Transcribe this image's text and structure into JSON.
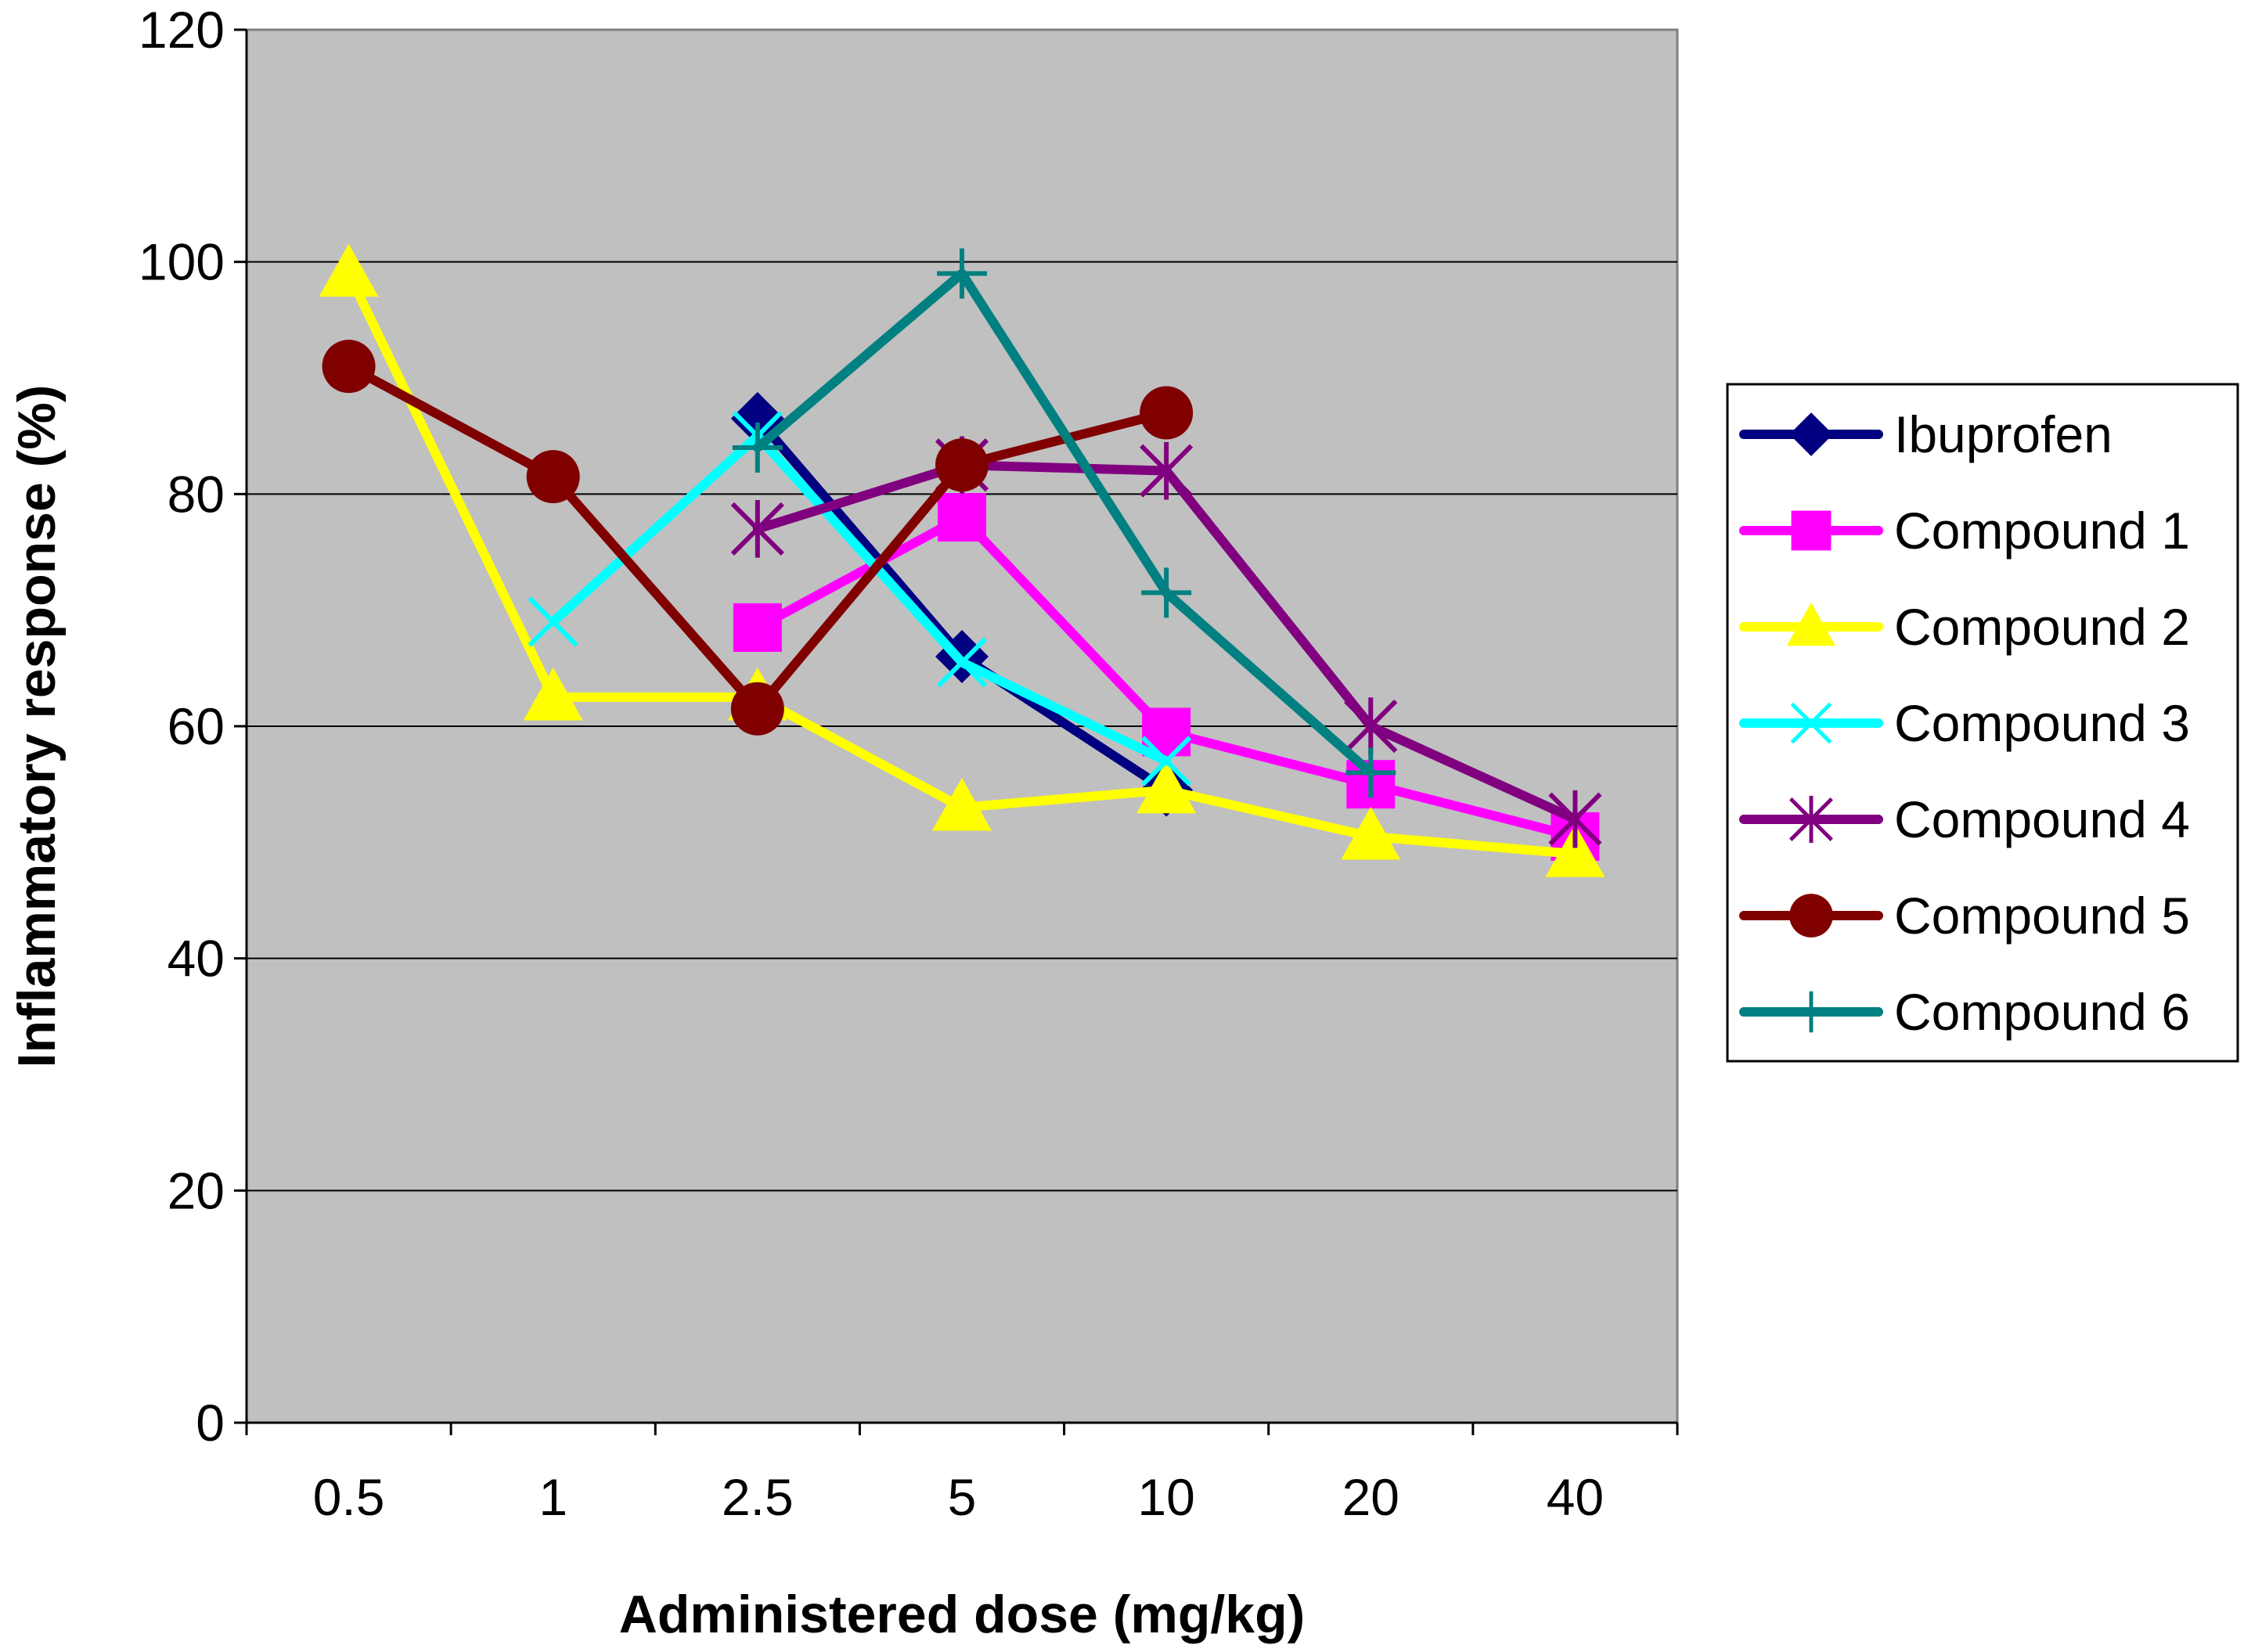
{
  "chart_data": {
    "type": "line",
    "title": "",
    "xlabel": "Administered dose (mg/kg)",
    "ylabel": "Inflammatory response (%)",
    "categories": [
      "0.5",
      "1",
      "2.5",
      "5",
      "10",
      "20",
      "40"
    ],
    "ylim": [
      0,
      120
    ],
    "yticks": [
      0,
      20,
      40,
      60,
      80,
      100,
      120
    ],
    "grid": true,
    "plot_background": "#c0c0c0",
    "legend_position": "right",
    "series": [
      {
        "name": "Ibuprofen",
        "color": "#000080",
        "marker": "diamond",
        "values": [
          null,
          null,
          86.5,
          66,
          54.5,
          null,
          null
        ]
      },
      {
        "name": "Compound 1",
        "color": "#ff00ff",
        "marker": "square",
        "values": [
          null,
          null,
          68.5,
          78,
          59.5,
          55,
          50.5
        ]
      },
      {
        "name": "Compound 2",
        "color": "#ffff00",
        "marker": "triangle",
        "values": [
          99,
          62.5,
          62.5,
          53,
          54.5,
          50.5,
          49
        ]
      },
      {
        "name": "Compound 3",
        "color": "#00ffff",
        "marker": "x",
        "values": [
          null,
          69,
          85,
          65.5,
          57,
          null,
          null
        ]
      },
      {
        "name": "Compound 4",
        "color": "#800080",
        "marker": "star",
        "values": [
          null,
          null,
          77,
          82.5,
          82,
          60,
          52
        ]
      },
      {
        "name": "Compound 5",
        "color": "#800000",
        "marker": "circle",
        "values": [
          91,
          81.5,
          61.5,
          82.5,
          87,
          null,
          null
        ]
      },
      {
        "name": "Compound 6",
        "color": "#008080",
        "marker": "plus",
        "values": [
          null,
          null,
          84,
          99,
          71.5,
          56,
          null
        ]
      }
    ]
  }
}
